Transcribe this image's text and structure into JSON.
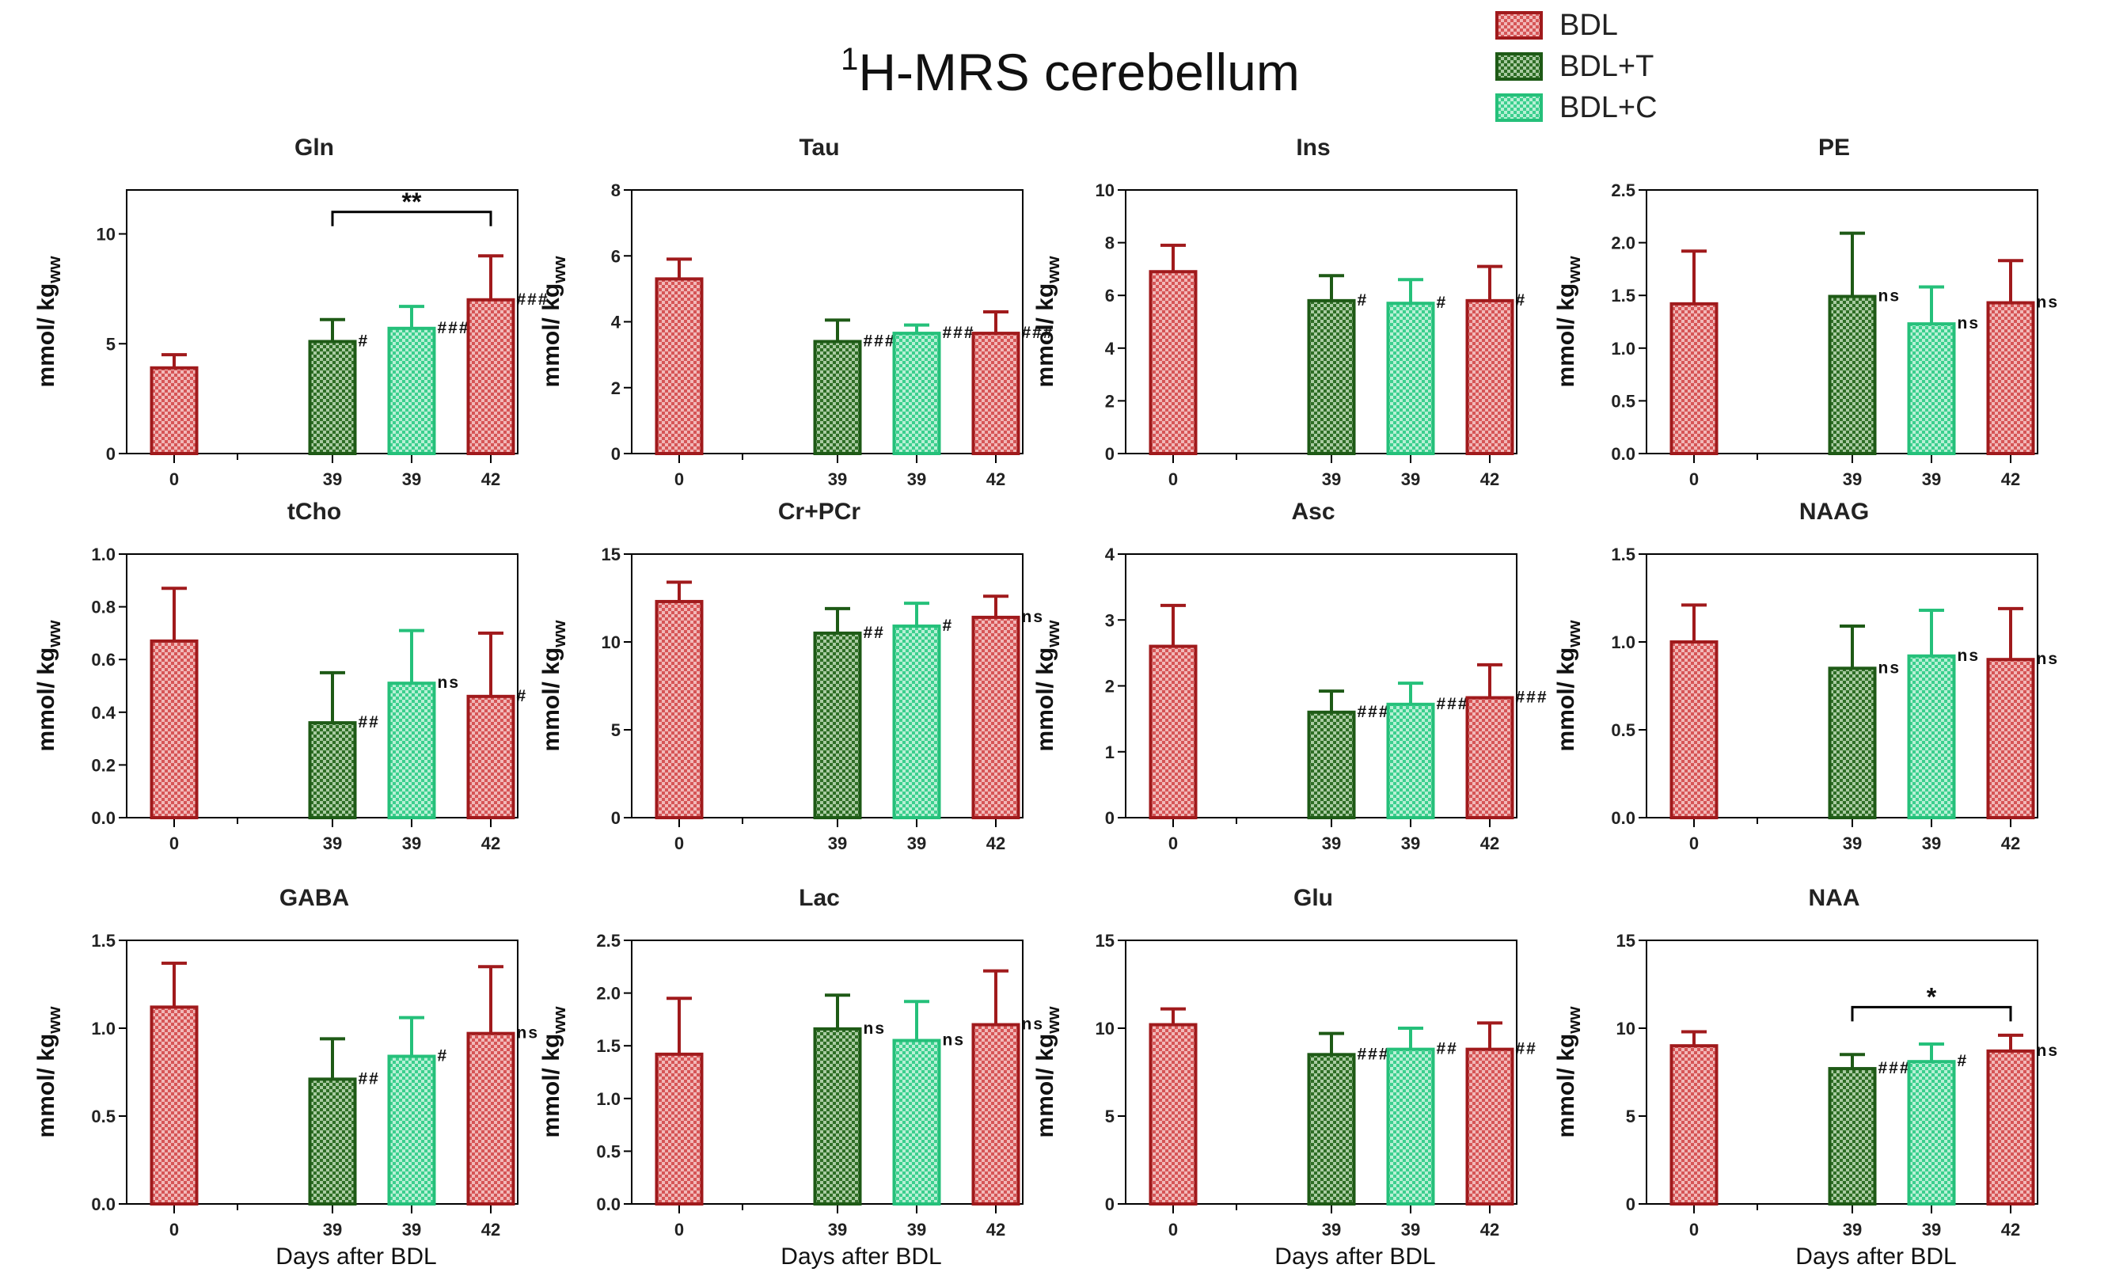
{
  "figure_title": {
    "prefix_sup": "1",
    "text": "H-MRS cerebellum"
  },
  "legend": [
    {
      "label": "BDL",
      "color": "#a01a1c",
      "fill": "#c0393b"
    },
    {
      "label": "BDL+T",
      "color": "#1e5a16",
      "fill": "#2f7a24"
    },
    {
      "label": "BDL+C",
      "color": "#25c07a",
      "fill": "#4ed69a"
    }
  ],
  "y_axis_label": {
    "main": "mmol/ kg",
    "sub": "ww"
  },
  "x_axis_label": "Days after BDL",
  "categories": [
    "0",
    "39",
    "39",
    "42"
  ],
  "chart_data": [
    {
      "type": "bar",
      "title": "Gln",
      "ylim": [
        0,
        12
      ],
      "ticks": [
        "0",
        "5",
        "10"
      ],
      "tick_values": [
        0,
        5,
        10
      ],
      "values": [
        3.9,
        5.1,
        5.7,
        7.0
      ],
      "errors": [
        0.6,
        1.0,
        1.0,
        2.0
      ],
      "annotations": [
        "",
        "#",
        "###",
        "###"
      ],
      "bracket": {
        "from": 1,
        "to": 3,
        "label": "**",
        "y": 11.0
      }
    },
    {
      "type": "bar",
      "title": "Tau",
      "ylim": [
        0,
        8
      ],
      "ticks": [
        "0",
        "2",
        "4",
        "6",
        "8"
      ],
      "tick_values": [
        0,
        2,
        4,
        6,
        8
      ],
      "values": [
        5.3,
        3.4,
        3.65,
        3.65
      ],
      "errors": [
        0.6,
        0.65,
        0.25,
        0.65
      ],
      "annotations": [
        "",
        "###",
        "###",
        "###"
      ]
    },
    {
      "type": "bar",
      "title": "Ins",
      "ylim": [
        0,
        10
      ],
      "ticks": [
        "0",
        "2",
        "4",
        "6",
        "8",
        "10"
      ],
      "tick_values": [
        0,
        2,
        4,
        6,
        8,
        10
      ],
      "values": [
        6.9,
        5.8,
        5.7,
        5.8
      ],
      "errors": [
        1.0,
        0.95,
        0.9,
        1.3
      ],
      "annotations": [
        "",
        "#",
        "#",
        "#"
      ]
    },
    {
      "type": "bar",
      "title": "PE",
      "ylim": [
        0,
        2.5
      ],
      "ticks": [
        "0.0",
        "0.5",
        "1.0",
        "1.5",
        "2.0",
        "2.5"
      ],
      "tick_values": [
        0,
        0.5,
        1.0,
        1.5,
        2.0,
        2.5
      ],
      "values": [
        1.42,
        1.49,
        1.23,
        1.43
      ],
      "errors": [
        0.5,
        0.6,
        0.35,
        0.4
      ],
      "annotations": [
        "",
        "ns",
        "ns",
        "ns"
      ]
    },
    {
      "type": "bar",
      "title": "tCho",
      "ylim": [
        0,
        1.0
      ],
      "ticks": [
        "0.0",
        "0.2",
        "0.4",
        "0.6",
        "0.8",
        "1.0"
      ],
      "tick_values": [
        0,
        0.2,
        0.4,
        0.6,
        0.8,
        1.0
      ],
      "values": [
        0.67,
        0.36,
        0.51,
        0.46
      ],
      "errors": [
        0.2,
        0.19,
        0.2,
        0.24
      ],
      "annotations": [
        "",
        "##",
        "ns",
        "#"
      ]
    },
    {
      "type": "bar",
      "title": "Cr+PCr",
      "ylim": [
        0,
        15
      ],
      "ticks": [
        "0",
        "5",
        "10",
        "15"
      ],
      "tick_values": [
        0,
        5,
        10,
        15
      ],
      "values": [
        12.3,
        10.5,
        10.9,
        11.4
      ],
      "errors": [
        1.1,
        1.4,
        1.3,
        1.2
      ],
      "annotations": [
        "",
        "##",
        "#",
        "ns"
      ]
    },
    {
      "type": "bar",
      "title": "Asc",
      "ylim": [
        0,
        4
      ],
      "ticks": [
        "0",
        "1",
        "2",
        "3",
        "4"
      ],
      "tick_values": [
        0,
        1,
        2,
        3,
        4
      ],
      "values": [
        2.6,
        1.6,
        1.72,
        1.82
      ],
      "errors": [
        0.62,
        0.32,
        0.32,
        0.5
      ],
      "annotations": [
        "",
        "###",
        "###",
        "###"
      ]
    },
    {
      "type": "bar",
      "title": "NAAG",
      "ylim": [
        0,
        1.5
      ],
      "ticks": [
        "0.0",
        "0.5",
        "1.0",
        "1.5"
      ],
      "tick_values": [
        0,
        0.5,
        1.0,
        1.5
      ],
      "values": [
        1.0,
        0.85,
        0.92,
        0.9
      ],
      "errors": [
        0.21,
        0.24,
        0.26,
        0.29
      ],
      "annotations": [
        "",
        "ns",
        "ns",
        "ns"
      ]
    },
    {
      "type": "bar",
      "title": "GABA",
      "ylim": [
        0,
        1.5
      ],
      "ticks": [
        "0.0",
        "0.5",
        "1.0",
        "1.5"
      ],
      "tick_values": [
        0,
        0.5,
        1.0,
        1.5
      ],
      "values": [
        1.12,
        0.71,
        0.84,
        0.97
      ],
      "errors": [
        0.25,
        0.23,
        0.22,
        0.38
      ],
      "annotations": [
        "",
        "##",
        "#",
        "ns"
      ]
    },
    {
      "type": "bar",
      "title": "Lac",
      "ylim": [
        0,
        2.5
      ],
      "ticks": [
        "0.0",
        "0.5",
        "1.0",
        "1.5",
        "2.0",
        "2.5"
      ],
      "tick_values": [
        0,
        0.5,
        1.0,
        1.5,
        2.0,
        2.5
      ],
      "values": [
        1.42,
        1.66,
        1.55,
        1.7
      ],
      "errors": [
        0.53,
        0.32,
        0.37,
        0.51
      ],
      "annotations": [
        "",
        "ns",
        "ns",
        "ns"
      ]
    },
    {
      "type": "bar",
      "title": "Glu",
      "ylim": [
        0,
        15
      ],
      "ticks": [
        "0",
        "5",
        "10",
        "15"
      ],
      "tick_values": [
        0,
        5,
        10,
        15
      ],
      "values": [
        10.2,
        8.5,
        8.8,
        8.8
      ],
      "errors": [
        0.9,
        1.2,
        1.2,
        1.5
      ],
      "annotations": [
        "",
        "###",
        "##",
        "##"
      ]
    },
    {
      "type": "bar",
      "title": "NAA",
      "ylim": [
        0,
        15
      ],
      "ticks": [
        "0",
        "5",
        "10",
        "15"
      ],
      "tick_values": [
        0,
        5,
        10,
        15
      ],
      "values": [
        9.0,
        7.7,
        8.1,
        8.7
      ],
      "errors": [
        0.8,
        0.8,
        1.0,
        0.9
      ],
      "annotations": [
        "",
        "###",
        "#",
        "ns"
      ],
      "bracket": {
        "from": 1,
        "to": 3,
        "label": "*",
        "y": 11.2
      }
    }
  ]
}
